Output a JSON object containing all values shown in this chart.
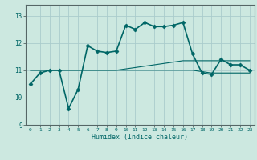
{
  "background_color": "#cce8e0",
  "grid_color": "#aacccc",
  "line_color": "#006666",
  "xlabel": "Humidex (Indice chaleur)",
  "xlim": [
    -0.5,
    23.5
  ],
  "ylim": [
    9,
    13.4
  ],
  "yticks": [
    9,
    10,
    11,
    12,
    13
  ],
  "xticks": [
    0,
    1,
    2,
    3,
    4,
    5,
    6,
    7,
    8,
    9,
    10,
    11,
    12,
    13,
    14,
    15,
    16,
    17,
    18,
    19,
    20,
    21,
    22,
    23
  ],
  "series": [
    {
      "x": [
        0,
        1,
        2,
        3,
        4,
        5,
        6,
        7,
        8,
        9,
        10,
        11,
        12,
        13,
        14,
        15,
        16,
        17,
        18,
        19,
        20,
        21,
        22,
        23
      ],
      "y": [
        10.5,
        10.9,
        11.0,
        11.0,
        9.6,
        10.3,
        11.9,
        11.7,
        11.65,
        11.7,
        12.65,
        12.5,
        12.75,
        12.6,
        12.6,
        12.65,
        12.75,
        11.6,
        10.9,
        10.85,
        11.4,
        11.2,
        11.2,
        11.0
      ],
      "marker": "D",
      "markersize": 2.5,
      "linewidth": 1.2
    },
    {
      "x": [
        0,
        1,
        2,
        3,
        4,
        5,
        6,
        7,
        8,
        9,
        10,
        11,
        12,
        13,
        14,
        15,
        16,
        17,
        18,
        19,
        20,
        21,
        22,
        23
      ],
      "y": [
        11.0,
        11.0,
        11.0,
        11.0,
        11.0,
        11.0,
        11.0,
        11.0,
        11.0,
        11.0,
        11.05,
        11.1,
        11.15,
        11.2,
        11.25,
        11.3,
        11.35,
        11.35,
        11.35,
        11.35,
        11.35,
        11.35,
        11.35,
        11.35
      ],
      "marker": null,
      "linewidth": 0.8
    },
    {
      "x": [
        0,
        1,
        2,
        3,
        4,
        5,
        6,
        7,
        8,
        9,
        10,
        11,
        12,
        13,
        14,
        15,
        16,
        17,
        18,
        19,
        20,
        21,
        22,
        23
      ],
      "y": [
        11.0,
        11.0,
        11.0,
        11.0,
        11.0,
        11.0,
        11.0,
        11.0,
        11.0,
        11.0,
        11.0,
        11.0,
        11.0,
        11.0,
        11.0,
        11.0,
        11.0,
        11.0,
        10.95,
        10.9,
        10.9,
        10.9,
        10.9,
        10.9
      ],
      "marker": null,
      "linewidth": 0.8
    }
  ]
}
